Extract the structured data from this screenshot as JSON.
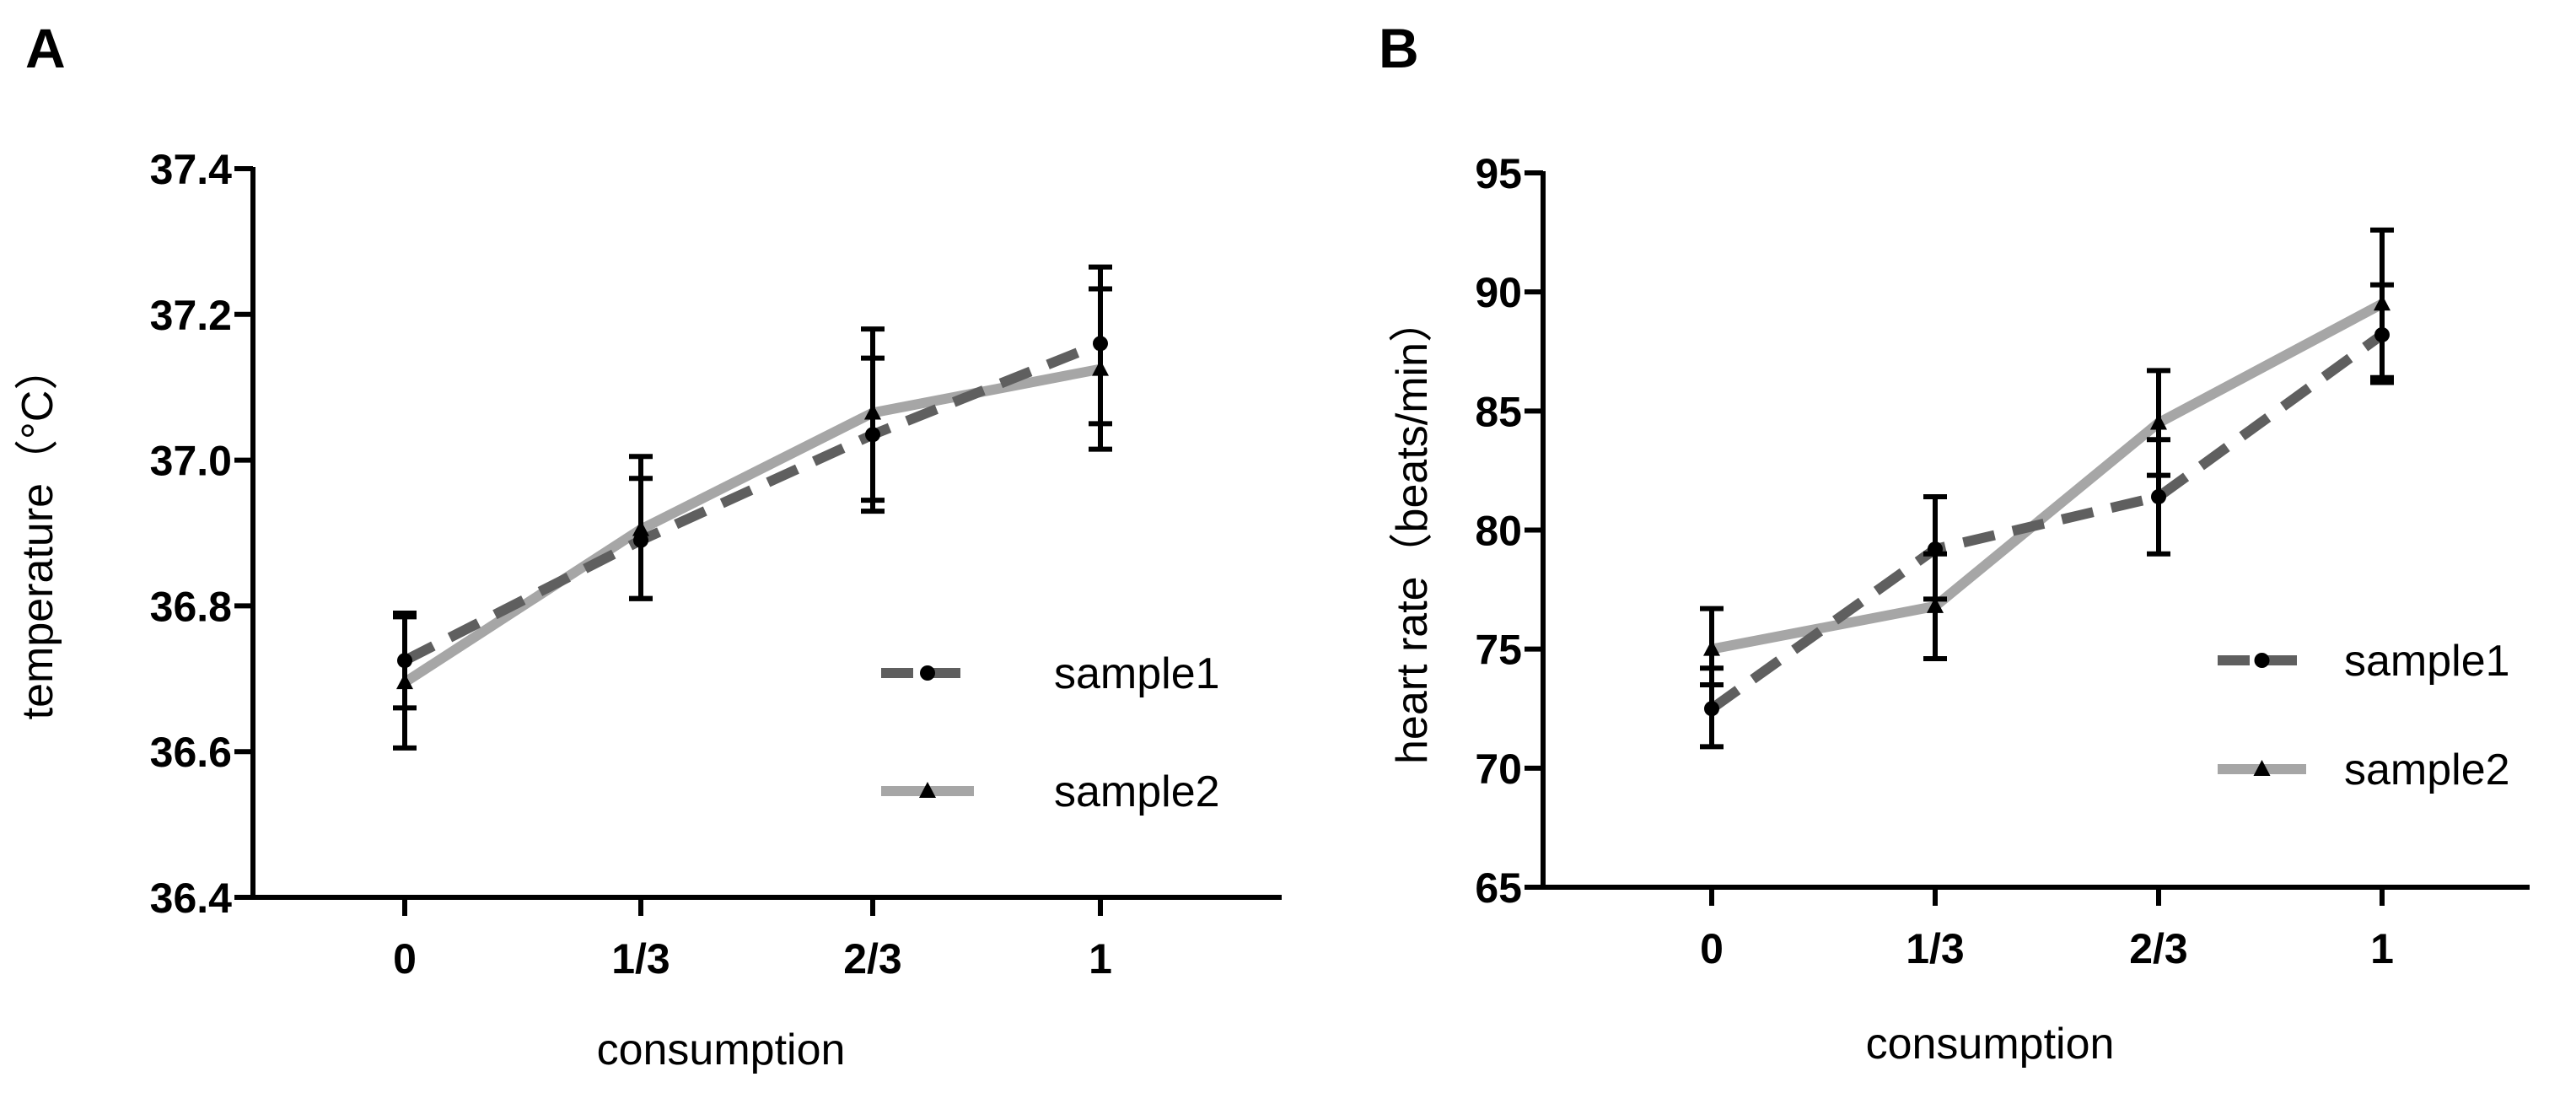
{
  "colors": {
    "sample1": "#5f5f5f",
    "sample2": "#a6a6a6",
    "errorbar": "#000000",
    "axis": "#000000"
  },
  "chart_data": [
    {
      "panel": "A",
      "type": "line",
      "xlabel": "consumption",
      "ylabel": "temperature（°C）",
      "categories": [
        "0",
        "1/3",
        "2/3",
        "1"
      ],
      "ylim": [
        36.4,
        37.4
      ],
      "yticks": [
        "36.4",
        "36.6",
        "36.8",
        "37.0",
        "37.2",
        "37.4"
      ],
      "ytick_values": [
        36.4,
        36.6,
        36.8,
        37.0,
        37.2,
        37.4
      ],
      "legend_position": "lower-right",
      "series": [
        {
          "name": "sample1",
          "style": "dashed",
          "marker": "circle",
          "values": [
            36.725,
            36.89,
            37.035,
            37.16
          ],
          "err_low": [
            36.66,
            36.81,
            36.93,
            37.05
          ],
          "err_high": [
            36.79,
            36.975,
            37.14,
            37.265
          ]
        },
        {
          "name": "sample2",
          "style": "solid",
          "marker": "triangle",
          "values": [
            36.695,
            36.905,
            37.065,
            37.125
          ],
          "err_low": [
            36.605,
            36.81,
            36.945,
            37.015
          ],
          "err_high": [
            36.785,
            37.005,
            37.18,
            37.235
          ]
        }
      ]
    },
    {
      "panel": "B",
      "type": "line",
      "xlabel": "consumption",
      "ylabel": "heart rate（beats/min）",
      "categories": [
        "0",
        "1/3",
        "2/3",
        "1"
      ],
      "ylim": [
        65,
        95
      ],
      "yticks": [
        "65",
        "70",
        "75",
        "80",
        "85",
        "90",
        "95"
      ],
      "ytick_values": [
        65,
        70,
        75,
        80,
        85,
        90,
        95
      ],
      "legend_position": "lower-right",
      "series": [
        {
          "name": "sample1",
          "style": "dashed",
          "marker": "circle",
          "values": [
            72.5,
            79.2,
            81.4,
            88.2
          ],
          "err_low": [
            70.9,
            77.1,
            79.0,
            86.2
          ],
          "err_high": [
            74.2,
            81.4,
            83.8,
            90.3
          ]
        },
        {
          "name": "sample2",
          "style": "solid",
          "marker": "triangle",
          "values": [
            75.0,
            76.8,
            84.5,
            89.5
          ],
          "err_low": [
            73.5,
            74.6,
            82.3,
            86.4
          ],
          "err_high": [
            76.7,
            79.0,
            86.7,
            92.6
          ]
        }
      ]
    }
  ]
}
